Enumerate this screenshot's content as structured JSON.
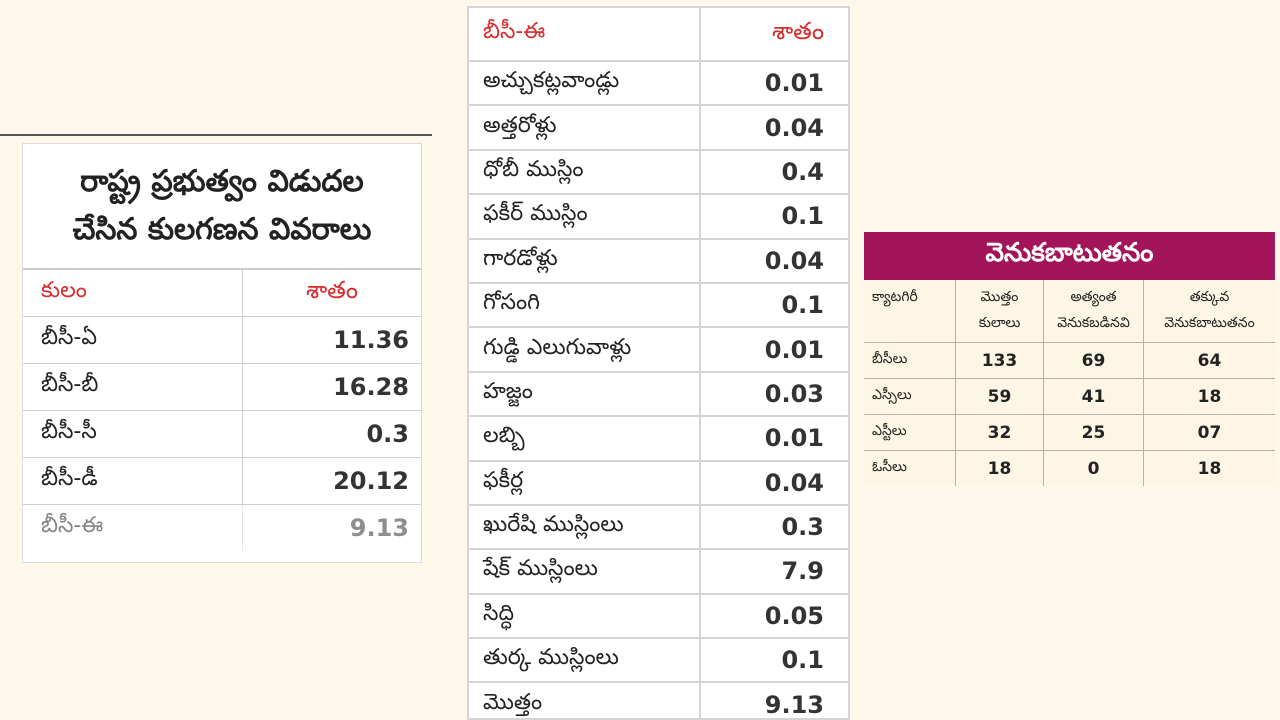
{
  "left_table": {
    "title_line1": "రాష్ట్ర ప్రభుత్వం విడుదల",
    "title_line2": "చేసిన కులగణన వివరాలు",
    "header": {
      "caste": "కులం",
      "percent": "శాతం"
    },
    "rows": [
      {
        "caste": "బీసీ-ఏ",
        "percent": "11.36"
      },
      {
        "caste": "బీసీ-బీ",
        "percent": "16.28"
      },
      {
        "caste": "బీసీ-సీ",
        "percent": "0.3"
      },
      {
        "caste": "బీసీ-డీ",
        "percent": "20.12"
      },
      {
        "caste": "బీసీ-ఈ",
        "percent": "9.13"
      }
    ]
  },
  "middle_table": {
    "header": {
      "caste": "బీసీ-ఈ",
      "percent": "శాతం"
    },
    "rows": [
      {
        "caste": "అచ్చుకట్లవాండ్లు",
        "percent": "0.01"
      },
      {
        "caste": "అత్తరోళ్లు",
        "percent": "0.04"
      },
      {
        "caste": "ధోబీ ముస్లిం",
        "percent": "0.4"
      },
      {
        "caste": "ఫకీర్ ముస్లిం",
        "percent": "0.1"
      },
      {
        "caste": "గారడోళ్లు",
        "percent": "0.04"
      },
      {
        "caste": "గోసంగి",
        "percent": "0.1"
      },
      {
        "caste": "గుడ్డి ఎలుగువాళ్లు",
        "percent": "0.01"
      },
      {
        "caste": "హజ్జం",
        "percent": "0.03"
      },
      {
        "caste": "లబ్బి",
        "percent": "0.01"
      },
      {
        "caste": "ఫకీర్ల",
        "percent": "0.04"
      },
      {
        "caste": "ఖురేషి ముస్లింలు",
        "percent": "0.3"
      },
      {
        "caste": "షేక్ ముస్లింలు",
        "percent": "7.9"
      },
      {
        "caste": "సిద్ధి",
        "percent": "0.05"
      },
      {
        "caste": "తుర్క ముస్లింలు",
        "percent": "0.1"
      },
      {
        "caste": "మొత్తం",
        "percent": "9.13"
      }
    ]
  },
  "right_table": {
    "title": "వెనుకబాటుతనం",
    "headers": {
      "category": "క్యాటగిరీ",
      "total_line1": "మొత్తం",
      "total_line2": "కులాలు",
      "most_line1": "అత్యంత",
      "most_line2": "వెనుకబడినవి",
      "less_line1": "తక్కువ",
      "less_line2": "వెనుకబాటుతనం"
    },
    "rows": [
      {
        "category": "బీసీలు",
        "total": "133",
        "most": "69",
        "less": "64"
      },
      {
        "category": "ఎస్సీలు",
        "total": "59",
        "most": "41",
        "less": "18"
      },
      {
        "category": "ఎస్టీలు",
        "total": "32",
        "most": "25",
        "less": "07"
      },
      {
        "category": "ఓసీలు",
        "total": "18",
        "most": "0",
        "less": "18"
      }
    ],
    "accent_color": "#a3155a"
  }
}
